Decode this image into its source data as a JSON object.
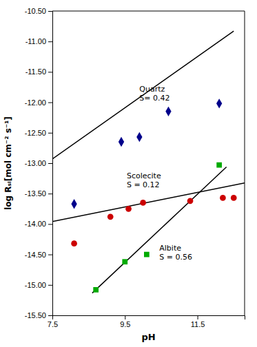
{
  "chart_data": {
    "type": "scatter",
    "xlabel": "pH",
    "ylabel": "log Rₛᵢ[mol cm⁻² s⁻¹]",
    "grid": false,
    "xlim": [
      7.5,
      12.8
    ],
    "ylim": [
      -15.5,
      -10.5
    ],
    "xticks": [
      7.5,
      9.5,
      11.5
    ],
    "yticks": [
      {
        "value": -15.5,
        "label": "-15.50"
      },
      {
        "value": -15.0,
        "label": "-15.00"
      },
      {
        "value": -14.5,
        "label": "-14.50"
      },
      {
        "value": -14.0,
        "label": "-14.00"
      },
      {
        "value": -13.5,
        "label": "-13.50"
      },
      {
        "value": -13.0,
        "label": "-13.00"
      },
      {
        "value": -12.5,
        "label": "-12.50"
      },
      {
        "value": -12.0,
        "label": "-12.00"
      },
      {
        "value": -11.5,
        "label": "-11.50"
      },
      {
        "value": -11.0,
        "label": "-11.00"
      },
      {
        "value": -10.5,
        "label": "-10.50"
      }
    ],
    "series": [
      {
        "type": "line",
        "color": "black",
        "x": [
          7.5,
          12.5
        ],
        "values": [
          -12.93,
          -10.83
        ]
      },
      {
        "type": "line",
        "color": "black",
        "x": [
          8.6,
          12.3
        ],
        "values": [
          -15.134,
          -13.062
        ]
      },
      {
        "type": "line",
        "color": "black",
        "x": [
          7.5,
          12.8
        ],
        "values": [
          -13.96,
          -13.324
        ]
      },
      {
        "type": "scatter",
        "color": "#00008B",
        "marker": "diamond",
        "x": [
          8.1,
          9.4,
          9.9,
          10.7,
          12.1
        ],
        "values": [
          -13.67,
          -12.65,
          -12.57,
          -12.15,
          -12.02
        ]
      },
      {
        "type": "scatter",
        "color": "#00AA00",
        "marker": "square",
        "x": [
          8.7,
          9.5,
          10.1,
          12.1
        ],
        "values": [
          -15.08,
          -14.62,
          -14.5,
          -13.03
        ]
      },
      {
        "type": "scatter",
        "color": "#CC0000",
        "marker": "circle",
        "x": [
          8.1,
          9.1,
          9.6,
          10.0,
          11.3,
          12.2,
          12.5
        ],
        "values": [
          -14.32,
          -13.88,
          -13.75,
          -13.65,
          -13.62,
          -13.57,
          -13.57
        ]
      }
    ],
    "annotations": [
      {
        "text": "Quartz\nS= 0.42",
        "x": 9.9,
        "y": -12.0
      },
      {
        "text": "Scolecite\nS = 0.12",
        "x": 9.55,
        "y": -13.43
      },
      {
        "text": "Albite\nS = 0.56",
        "x": 10.45,
        "y": -14.62
      }
    ]
  }
}
